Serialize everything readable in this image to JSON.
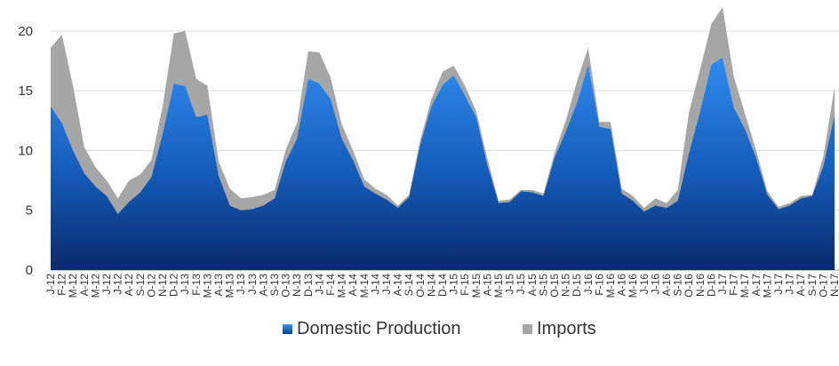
{
  "chart_data": {
    "type": "area",
    "stacked": true,
    "x": [
      "J-12",
      "F-12",
      "M-12",
      "A-12",
      "M-12",
      "J-12",
      "J-12",
      "A-12",
      "S-12",
      "O-12",
      "N-12",
      "D-12",
      "J-13",
      "F-13",
      "M-13",
      "A-13",
      "M-13",
      "J-13",
      "J-13",
      "A-13",
      "S-13",
      "O-13",
      "N-13",
      "D-13",
      "J-14",
      "F-14",
      "M-14",
      "A-14",
      "M-14",
      "J-14",
      "J-14",
      "A-14",
      "S-14",
      "O-14",
      "N-14",
      "D-14",
      "J-15",
      "F-15",
      "M-15",
      "A-15",
      "M-15",
      "J-15",
      "J-15",
      "A-15",
      "S-15",
      "O-15",
      "N-15",
      "D-15",
      "J-16",
      "F-16",
      "M-16",
      "A-16",
      "M-16",
      "J-16",
      "J-16",
      "A-16",
      "S-16",
      "O-16",
      "N-16",
      "D-16",
      "J-17",
      "F-17",
      "M-17",
      "A-17",
      "M-17",
      "J-17",
      "J-17",
      "A-17",
      "S-17",
      "O-17",
      "N-17"
    ],
    "series": [
      {
        "name": "Domestic Production",
        "color": "#1f5fc9",
        "values": [
          13.7,
          12.3,
          10.0,
          8.1,
          7.0,
          6.2,
          4.7,
          5.7,
          6.5,
          7.8,
          11.4,
          15.6,
          15.4,
          12.8,
          13.0,
          7.9,
          5.4,
          5.0,
          5.1,
          5.4,
          6.0,
          9.1,
          11.0,
          16.0,
          15.6,
          14.3,
          11.0,
          9.2,
          7.0,
          6.4,
          5.9,
          5.2,
          6.1,
          10.5,
          13.7,
          15.5,
          16.3,
          14.6,
          12.8,
          8.8,
          5.6,
          5.7,
          6.6,
          6.5,
          6.2,
          9.4,
          11.6,
          14.0,
          17.2,
          12.0,
          11.8,
          6.4,
          5.8,
          4.9,
          5.4,
          5.2,
          5.8,
          9.8,
          13.3,
          17.2,
          17.8,
          13.6,
          11.8,
          9.4,
          6.3,
          5.1,
          5.4,
          6.0,
          6.2,
          8.7,
          13.0
        ]
      },
      {
        "name": "Imports",
        "color": "#a6a6a6",
        "values": [
          4.9,
          7.4,
          5.4,
          2.2,
          1.6,
          1.3,
          1.3,
          1.8,
          1.5,
          1.4,
          2.3,
          4.2,
          4.6,
          3.2,
          2.4,
          1.2,
          1.4,
          1.0,
          1.0,
          0.9,
          0.7,
          1.0,
          1.3,
          2.3,
          2.6,
          1.8,
          1.2,
          0.8,
          0.6,
          0.4,
          0.4,
          0.2,
          0.2,
          0.4,
          0.6,
          1.1,
          0.8,
          0.8,
          0.5,
          0.5,
          0.2,
          0.2,
          0.1,
          0.2,
          0.2,
          0.4,
          0.9,
          1.8,
          1.4,
          0.4,
          0.6,
          0.4,
          0.4,
          0.3,
          0.6,
          0.4,
          0.9,
          3.4,
          3.5,
          3.4,
          4.2,
          2.6,
          1.3,
          0.6,
          0.3,
          0.2,
          0.2,
          0.2,
          0.1,
          0.8,
          2.3
        ]
      }
    ],
    "y_ticks": [
      "0",
      "5",
      "10",
      "15",
      "20"
    ],
    "ylim": [
      0,
      22
    ],
    "grid": true,
    "legend_placement": "bottom-center",
    "title": "",
    "xlabel": "",
    "ylabel": ""
  }
}
